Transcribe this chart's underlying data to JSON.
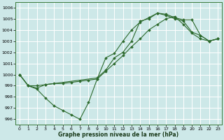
{
  "xlabel": "Graphe pression niveau de la mer (hPa)",
  "background_color": "#cde8e8",
  "grid_color": "#ffffff",
  "line_color": "#2d6a2d",
  "xlim": [
    -0.5,
    23.5
  ],
  "ylim": [
    995.5,
    1006.5
  ],
  "yticks": [
    996,
    997,
    998,
    999,
    1000,
    1001,
    1002,
    1003,
    1004,
    1005,
    1006
  ],
  "xticks": [
    0,
    1,
    2,
    3,
    4,
    5,
    6,
    7,
    8,
    9,
    10,
    11,
    12,
    13,
    14,
    15,
    16,
    17,
    18,
    19,
    20,
    21,
    22,
    23
  ],
  "line1_x": [
    0,
    1,
    2,
    3,
    4,
    5,
    6,
    7,
    8,
    9,
    10,
    11,
    12,
    13,
    14,
    15,
    16,
    17,
    18,
    19,
    20,
    21,
    22,
    23
  ],
  "line1_y": [
    1000.0,
    999.0,
    998.7,
    997.9,
    997.2,
    996.8,
    996.4,
    996.0,
    997.5,
    999.6,
    1001.5,
    1001.9,
    1003.0,
    1004.0,
    1004.7,
    1005.1,
    1005.5,
    1005.3,
    1005.0,
    1004.8,
    1003.8,
    1003.5,
    1003.0,
    1003.2
  ],
  "line2_x": [
    0,
    1,
    2,
    3,
    4,
    5,
    6,
    7,
    8,
    9,
    10,
    11,
    12,
    13,
    14,
    15,
    16,
    17,
    18,
    19,
    20,
    21,
    22,
    23
  ],
  "line2_y": [
    1000.0,
    999.0,
    999.0,
    999.1,
    999.2,
    999.2,
    999.3,
    999.4,
    999.5,
    999.6,
    1000.3,
    1001.0,
    1001.7,
    1002.5,
    1003.2,
    1004.0,
    1004.5,
    1005.0,
    1005.2,
    1004.5,
    1003.7,
    1003.2,
    1003.0,
    1003.2
  ],
  "line3_x": [
    0,
    1,
    2,
    3,
    9,
    10,
    11,
    12,
    13,
    14,
    15,
    16,
    17,
    18,
    19,
    20,
    21,
    22,
    23
  ],
  "line3_y": [
    1000.0,
    999.0,
    998.8,
    999.1,
    999.7,
    1000.4,
    1001.5,
    1002.0,
    1003.0,
    1004.8,
    1005.0,
    1005.5,
    1005.4,
    1005.1,
    1004.9,
    1004.9,
    1003.5,
    1003.0,
    1003.2
  ],
  "figsize": [
    3.2,
    2.0
  ],
  "dpi": 100
}
